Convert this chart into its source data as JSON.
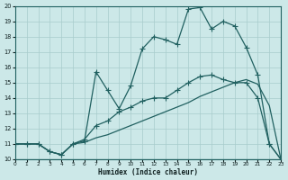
{
  "xlabel": "Humidex (Indice chaleur)",
  "xlim": [
    0,
    23
  ],
  "ylim": [
    10,
    20
  ],
  "xticks": [
    0,
    1,
    2,
    3,
    4,
    5,
    6,
    7,
    8,
    9,
    10,
    11,
    12,
    13,
    14,
    15,
    16,
    17,
    18,
    19,
    20,
    21,
    22,
    23
  ],
  "yticks": [
    10,
    11,
    12,
    13,
    14,
    15,
    16,
    17,
    18,
    19,
    20
  ],
  "bg_color": "#cce8e8",
  "grid_color": "#a8cccc",
  "line_color": "#206060",
  "line_top_x": [
    0,
    1,
    2,
    3,
    4,
    5,
    6,
    7,
    8,
    9,
    10,
    11,
    12,
    13,
    14,
    15,
    16,
    17,
    18,
    19,
    20,
    21,
    22,
    23
  ],
  "line_top_y": [
    11,
    11,
    11,
    10.5,
    10.3,
    11.0,
    11.2,
    15.7,
    14.5,
    13.3,
    14.8,
    17.2,
    18.0,
    17.8,
    17.5,
    19.8,
    19.9,
    18.5,
    19.0,
    18.7,
    17.3,
    15.5,
    11.0,
    10.0
  ],
  "line_mid_x": [
    0,
    1,
    2,
    3,
    4,
    5,
    6,
    7,
    8,
    9,
    10,
    11,
    12,
    13,
    14,
    15,
    16,
    17,
    18,
    19,
    20,
    21,
    22,
    23
  ],
  "line_mid_y": [
    11,
    11,
    11,
    10.5,
    10.3,
    11.0,
    11.3,
    12.2,
    12.5,
    13.1,
    13.4,
    13.8,
    14.0,
    14.0,
    14.5,
    15.0,
    15.4,
    15.5,
    15.2,
    15.0,
    15.0,
    14.0,
    11.0,
    10.0
  ],
  "line_bot_x": [
    0,
    1,
    2,
    3,
    4,
    5,
    6,
    7,
    8,
    9,
    10,
    11,
    12,
    13,
    14,
    15,
    16,
    17,
    18,
    19,
    20,
    21,
    22,
    23
  ],
  "line_bot_y": [
    11,
    11,
    11,
    10.5,
    10.3,
    11.0,
    11.1,
    11.4,
    11.6,
    11.9,
    12.2,
    12.5,
    12.8,
    13.1,
    13.4,
    13.7,
    14.1,
    14.4,
    14.7,
    15.0,
    15.2,
    14.9,
    13.5,
    10.0
  ],
  "line_flat_x": [
    0,
    1,
    2,
    3,
    4,
    5,
    6,
    7,
    8,
    9,
    10,
    11,
    12,
    13,
    14,
    15,
    16,
    17,
    18,
    22,
    23
  ],
  "line_flat_y": [
    10,
    10,
    10,
    10,
    10,
    10,
    10,
    10,
    10,
    10,
    10,
    10,
    10,
    10,
    10,
    10,
    10,
    10,
    10,
    10,
    10
  ]
}
